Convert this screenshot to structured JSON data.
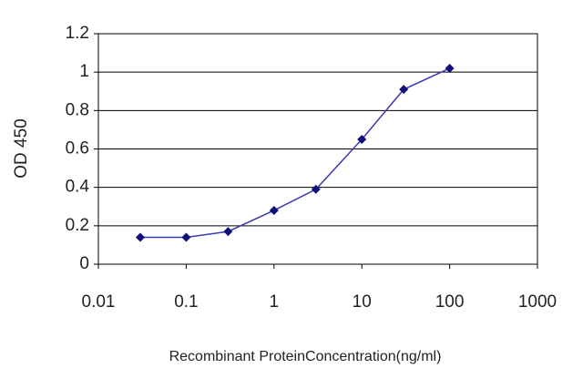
{
  "chart_data": {
    "type": "line",
    "x_label": "Recombinant ProteinConcentration(ng/ml)",
    "y_label": "OD 450",
    "x": [
      0.03,
      0.1,
      0.3,
      1,
      3,
      10,
      30,
      100
    ],
    "series": [
      {
        "color": "#3a3ab4",
        "values": [
          0.14,
          0.14,
          0.17,
          0.28,
          0.39,
          0.65,
          0.91,
          1.02
        ]
      }
    ],
    "xlim": [
      0.01,
      1000
    ],
    "xticks": [
      0.01,
      0.1,
      1,
      10,
      100,
      1000
    ],
    "xscale": "log",
    "ylim": [
      0,
      1.2
    ],
    "yticks": [
      0,
      0.2,
      0.4,
      0.6,
      0.8,
      1,
      1.2
    ],
    "grid": true
  }
}
